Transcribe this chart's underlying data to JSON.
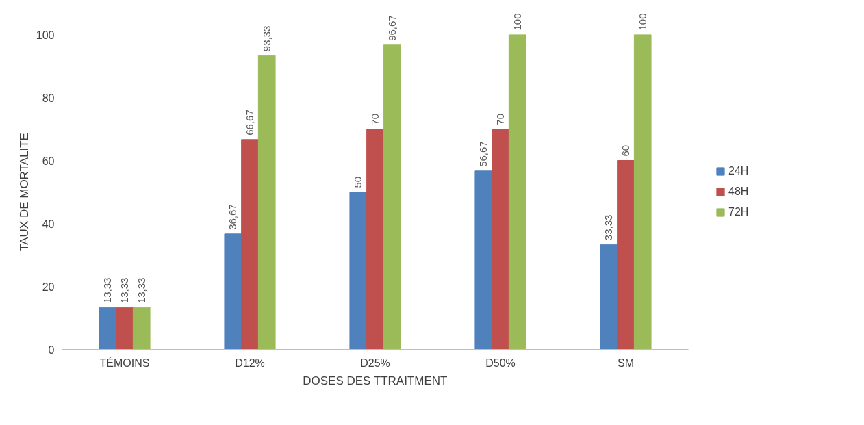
{
  "chart_data": {
    "type": "bar",
    "xlabel": "DOSES DES TTRAITMENT",
    "ylabel": "TAUX DE MORTALITE",
    "categories": [
      "TÉMOINS",
      "D12%",
      "D25%",
      "D50%",
      "SM"
    ],
    "series": [
      {
        "name": "24H",
        "color": "#4f81bd",
        "values": [
          13.33,
          36.67,
          50,
          56.67,
          33.33
        ],
        "value_labels": [
          "13,33",
          "36,67",
          "50",
          "56,67",
          "33,33"
        ]
      },
      {
        "name": "48H",
        "color": "#c0504d",
        "values": [
          13.33,
          66.67,
          70,
          70,
          60
        ],
        "value_labels": [
          "13,33",
          "66,67",
          "70",
          "70",
          "60"
        ]
      },
      {
        "name": "72H",
        "color": "#9bbb59",
        "values": [
          13.33,
          93.33,
          96.67,
          100,
          100
        ],
        "value_labels": [
          "13,33",
          "93,33",
          "96,67",
          "100",
          "100"
        ]
      }
    ],
    "ylim": [
      0,
      100
    ],
    "yticks": [
      0,
      20,
      40,
      60,
      80,
      100
    ],
    "legend": "right",
    "grid": false
  }
}
